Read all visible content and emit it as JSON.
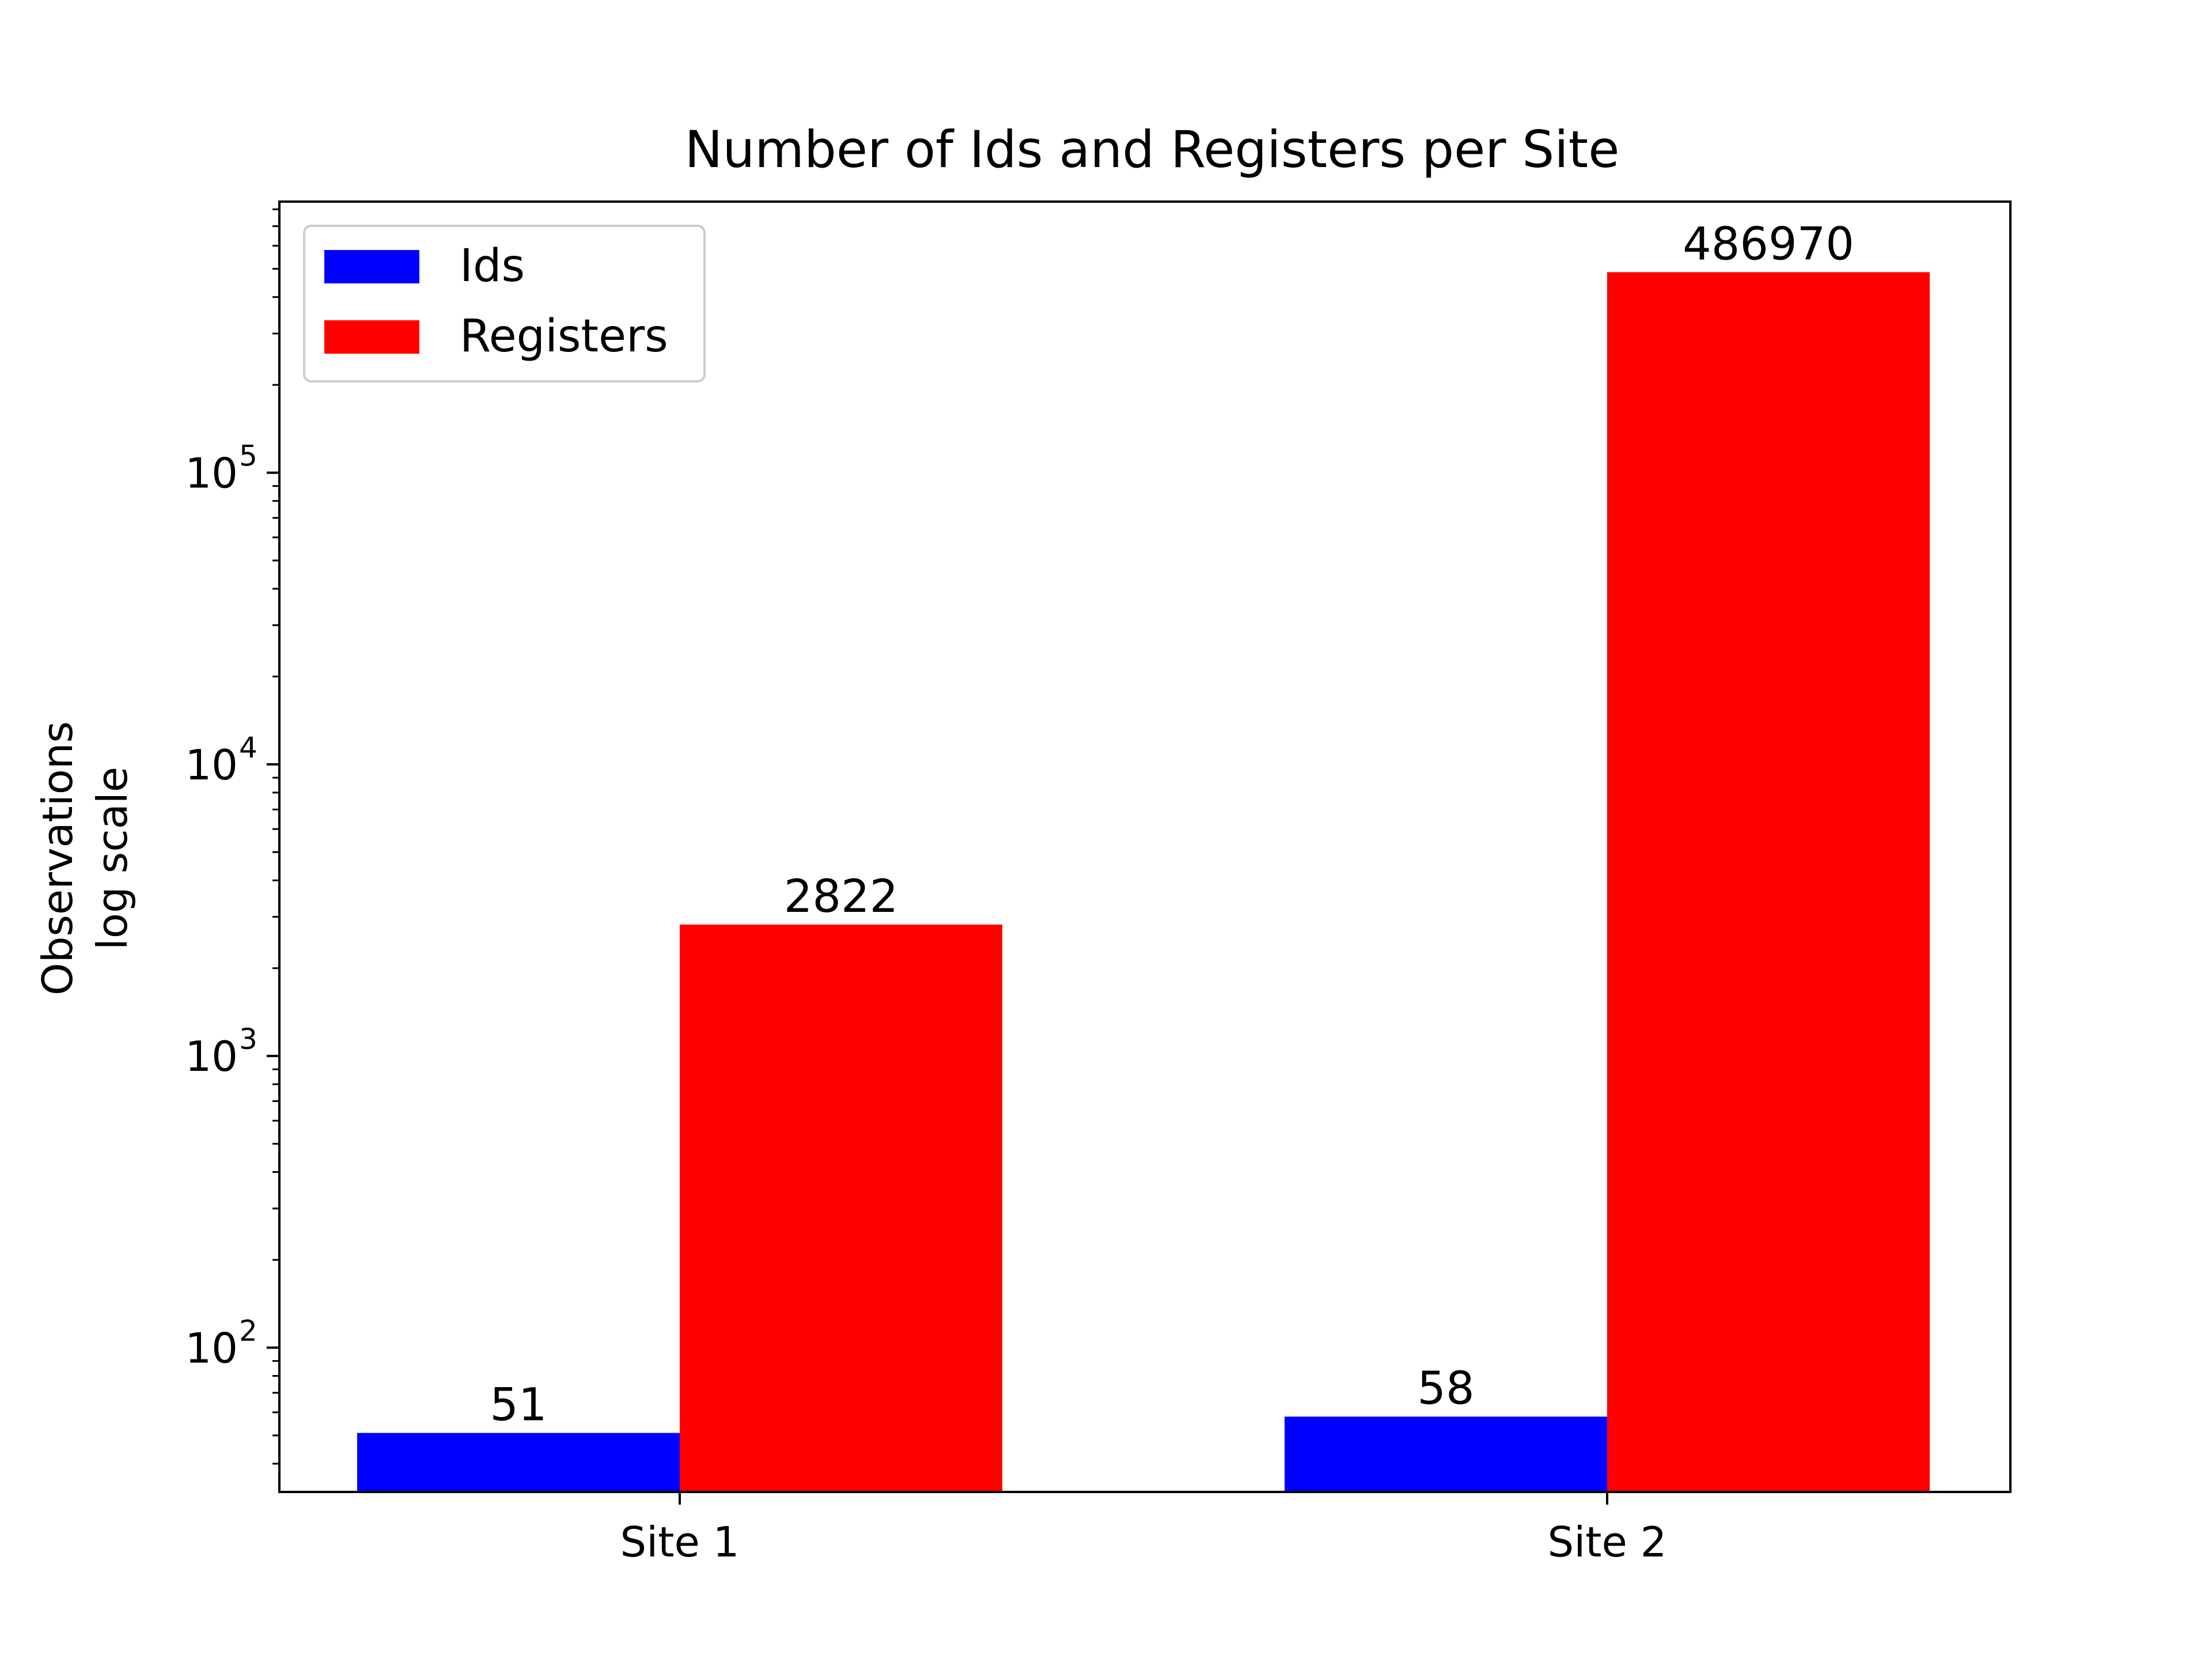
{
  "chart_data": {
    "type": "bar",
    "title": "Number of Ids and Registers per Site",
    "ylabel_lines": [
      "Observations",
      "log scale"
    ],
    "yscale": "log",
    "ylim": [
      32,
      850000
    ],
    "ymajor_ticks": [
      {
        "value": 100,
        "base": "10",
        "exp": "2"
      },
      {
        "value": 1000,
        "base": "10",
        "exp": "3"
      },
      {
        "value": 10000,
        "base": "10",
        "exp": "4"
      },
      {
        "value": 100000,
        "base": "10",
        "exp": "5"
      }
    ],
    "categories": [
      "Site 1",
      "Site 2"
    ],
    "series": [
      {
        "name": "Ids",
        "color": "#0000ff",
        "values": [
          51,
          58
        ],
        "labels": [
          "51",
          "58"
        ]
      },
      {
        "name": "Registers",
        "color": "#ff0000",
        "values": [
          2822,
          486970
        ],
        "labels": [
          "2822",
          "486970"
        ]
      }
    ],
    "legend_position": "top-left",
    "grid": false
  }
}
